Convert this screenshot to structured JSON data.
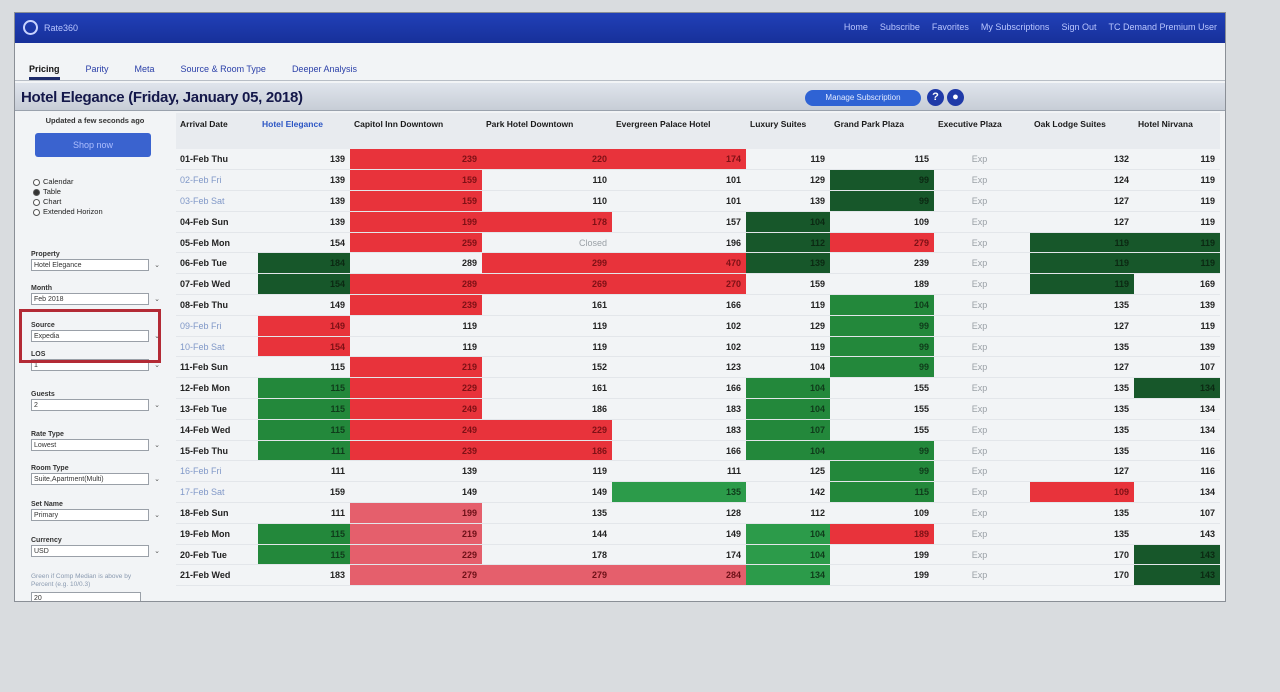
{
  "app": {
    "name": "Rate360",
    "topnav": [
      "Home",
      "Subscribe",
      "Favorites",
      "My Subscriptions",
      "Sign Out",
      "TC Demand Premium User"
    ]
  },
  "tabs": [
    "Pricing",
    "Parity",
    "Meta",
    "Source & Room Type",
    "Deeper Analysis"
  ],
  "header": {
    "title": "Hotel Elegance  (Friday, January 05, 2018)",
    "manage_label": "Manage Subscription"
  },
  "sidebar": {
    "updated": "Updated a few seconds ago",
    "shop_label": "Shop now",
    "views": [
      "Calendar",
      "Table",
      "Chart",
      "Extended Horizon"
    ],
    "fields": [
      {
        "label": "Property",
        "value": "Hotel Elegance"
      },
      {
        "label": "Month",
        "value": "Feb 2018"
      },
      {
        "label": "Source",
        "value": "Expedia"
      },
      {
        "label": "LOS",
        "value": "1"
      },
      {
        "label": "Guests",
        "value": "2"
      },
      {
        "label": "Rate Type",
        "value": "Lowest"
      },
      {
        "label": "Room Type",
        "value": "Suite,Apartment(Multi)"
      },
      {
        "label": "Set Name",
        "value": "Primary"
      },
      {
        "label": "Currency",
        "value": "USD"
      }
    ],
    "fine_print": "Green if Comp Median is above by Percent (e.g. 10/0.3)",
    "threshold": "20"
  },
  "columns": [
    "Arrival Date",
    "Hotel Elegance",
    "Capitol Inn Downtown",
    "Park Hotel Downtown",
    "Evergreen Palace Hotel",
    "Luxury Suites",
    "Grand Park Plaza",
    "Executive Plaza",
    "Oak Lodge Suites",
    "Hotel Nirvana"
  ],
  "rows": [
    {
      "date": "01-Feb Thu",
      "wk": false,
      "cells": [
        [
          "139",
          ""
        ],
        [
          "239",
          "r"
        ],
        [
          "220",
          "r"
        ],
        [
          "174",
          "r"
        ],
        [
          "119",
          ""
        ],
        [
          "115",
          ""
        ],
        [
          "Exp",
          "exp"
        ],
        [
          "132",
          ""
        ],
        [
          "119",
          ""
        ]
      ]
    },
    {
      "date": "02-Feb Fri",
      "wk": true,
      "cells": [
        [
          "139",
          ""
        ],
        [
          "159",
          "r"
        ],
        [
          "110",
          ""
        ],
        [
          "101",
          ""
        ],
        [
          "129",
          ""
        ],
        [
          "99",
          "dg"
        ],
        [
          "Exp",
          "exp"
        ],
        [
          "124",
          ""
        ],
        [
          "119",
          ""
        ]
      ]
    },
    {
      "date": "03-Feb Sat",
      "wk": true,
      "cells": [
        [
          "139",
          ""
        ],
        [
          "159",
          "r"
        ],
        [
          "110",
          ""
        ],
        [
          "101",
          ""
        ],
        [
          "139",
          ""
        ],
        [
          "99",
          "dg"
        ],
        [
          "Exp",
          "exp"
        ],
        [
          "127",
          ""
        ],
        [
          "119",
          ""
        ]
      ]
    },
    {
      "date": "04-Feb Sun",
      "wk": false,
      "cells": [
        [
          "139",
          ""
        ],
        [
          "199",
          "r"
        ],
        [
          "178",
          "r"
        ],
        [
          "157",
          ""
        ],
        [
          "104",
          "dg"
        ],
        [
          "109",
          ""
        ],
        [
          "Exp",
          "exp"
        ],
        [
          "127",
          ""
        ],
        [
          "119",
          ""
        ]
      ]
    },
    {
      "date": "05-Feb Mon",
      "wk": false,
      "cells": [
        [
          "154",
          ""
        ],
        [
          "259",
          "r"
        ],
        [
          "Closed",
          "closed"
        ],
        [
          "196",
          ""
        ],
        [
          "112",
          "dg"
        ],
        [
          "279",
          "r"
        ],
        [
          "Exp",
          "exp"
        ],
        [
          "119",
          "dg"
        ],
        [
          "119",
          "dg"
        ]
      ]
    },
    {
      "date": "06-Feb Tue",
      "wk": false,
      "cells": [
        [
          "184",
          "dg"
        ],
        [
          "289",
          ""
        ],
        [
          "299",
          "r"
        ],
        [
          "470",
          "r"
        ],
        [
          "139",
          "dg"
        ],
        [
          "239",
          ""
        ],
        [
          "Exp",
          "exp"
        ],
        [
          "119",
          "dg"
        ],
        [
          "119",
          "dg"
        ]
      ]
    },
    {
      "date": "07-Feb Wed",
      "wk": false,
      "cells": [
        [
          "154",
          "dg"
        ],
        [
          "289",
          "r"
        ],
        [
          "269",
          "r"
        ],
        [
          "270",
          "r"
        ],
        [
          "159",
          ""
        ],
        [
          "189",
          ""
        ],
        [
          "Exp",
          "exp"
        ],
        [
          "119",
          "dg"
        ],
        [
          "169",
          ""
        ]
      ]
    },
    {
      "date": "08-Feb Thu",
      "wk": false,
      "cells": [
        [
          "149",
          ""
        ],
        [
          "239",
          "r"
        ],
        [
          "161",
          ""
        ],
        [
          "166",
          ""
        ],
        [
          "119",
          ""
        ],
        [
          "104",
          "g"
        ],
        [
          "Exp",
          "exp"
        ],
        [
          "135",
          ""
        ],
        [
          "139",
          ""
        ]
      ]
    },
    {
      "date": "09-Feb Fri",
      "wk": true,
      "cells": [
        [
          "149",
          "r"
        ],
        [
          "119",
          ""
        ],
        [
          "119",
          ""
        ],
        [
          "102",
          ""
        ],
        [
          "129",
          ""
        ],
        [
          "99",
          "g"
        ],
        [
          "Exp",
          "exp"
        ],
        [
          "127",
          ""
        ],
        [
          "119",
          ""
        ]
      ]
    },
    {
      "date": "10-Feb Sat",
      "wk": true,
      "cells": [
        [
          "154",
          "r"
        ],
        [
          "119",
          ""
        ],
        [
          "119",
          ""
        ],
        [
          "102",
          ""
        ],
        [
          "119",
          ""
        ],
        [
          "99",
          "g"
        ],
        [
          "Exp",
          "exp"
        ],
        [
          "135",
          ""
        ],
        [
          "139",
          ""
        ]
      ]
    },
    {
      "date": "11-Feb Sun",
      "wk": false,
      "cells": [
        [
          "115",
          ""
        ],
        [
          "219",
          "r"
        ],
        [
          "152",
          ""
        ],
        [
          "123",
          ""
        ],
        [
          "104",
          ""
        ],
        [
          "99",
          "g"
        ],
        [
          "Exp",
          "exp"
        ],
        [
          "127",
          ""
        ],
        [
          "107",
          ""
        ]
      ]
    },
    {
      "date": "12-Feb Mon",
      "wk": false,
      "cells": [
        [
          "115",
          "g"
        ],
        [
          "229",
          "r"
        ],
        [
          "161",
          ""
        ],
        [
          "166",
          ""
        ],
        [
          "104",
          "g"
        ],
        [
          "155",
          ""
        ],
        [
          "Exp",
          "exp"
        ],
        [
          "135",
          ""
        ],
        [
          "134",
          "dg"
        ]
      ]
    },
    {
      "date": "13-Feb Tue",
      "wk": false,
      "cells": [
        [
          "115",
          "g"
        ],
        [
          "249",
          "r"
        ],
        [
          "186",
          ""
        ],
        [
          "183",
          ""
        ],
        [
          "104",
          "g"
        ],
        [
          "155",
          ""
        ],
        [
          "Exp",
          "exp"
        ],
        [
          "135",
          ""
        ],
        [
          "134",
          ""
        ]
      ]
    },
    {
      "date": "14-Feb Wed",
      "wk": false,
      "cells": [
        [
          "115",
          "g"
        ],
        [
          "249",
          "r"
        ],
        [
          "229",
          "r"
        ],
        [
          "183",
          ""
        ],
        [
          "107",
          "g"
        ],
        [
          "155",
          ""
        ],
        [
          "Exp",
          "exp"
        ],
        [
          "135",
          ""
        ],
        [
          "134",
          ""
        ]
      ]
    },
    {
      "date": "15-Feb Thu",
      "wk": false,
      "cells": [
        [
          "111",
          "g"
        ],
        [
          "239",
          "r"
        ],
        [
          "186",
          "r"
        ],
        [
          "166",
          ""
        ],
        [
          "104",
          "g"
        ],
        [
          "99",
          "g"
        ],
        [
          "Exp",
          "exp"
        ],
        [
          "135",
          ""
        ],
        [
          "116",
          ""
        ]
      ]
    },
    {
      "date": "16-Feb Fri",
      "wk": true,
      "cells": [
        [
          "111",
          ""
        ],
        [
          "139",
          ""
        ],
        [
          "119",
          ""
        ],
        [
          "111",
          ""
        ],
        [
          "125",
          ""
        ],
        [
          "99",
          "g"
        ],
        [
          "Exp",
          "exp"
        ],
        [
          "127",
          ""
        ],
        [
          "116",
          ""
        ]
      ]
    },
    {
      "date": "17-Feb Sat",
      "wk": true,
      "cells": [
        [
          "159",
          ""
        ],
        [
          "149",
          ""
        ],
        [
          "149",
          ""
        ],
        [
          "135",
          "g2"
        ],
        [
          "142",
          ""
        ],
        [
          "115",
          "g"
        ],
        [
          "Exp",
          "exp"
        ],
        [
          "109",
          "r"
        ],
        [
          "134",
          ""
        ]
      ]
    },
    {
      "date": "18-Feb Sun",
      "wk": false,
      "cells": [
        [
          "111",
          ""
        ],
        [
          "199",
          "r2"
        ],
        [
          "135",
          ""
        ],
        [
          "128",
          ""
        ],
        [
          "112",
          ""
        ],
        [
          "109",
          ""
        ],
        [
          "Exp",
          "exp"
        ],
        [
          "135",
          ""
        ],
        [
          "107",
          ""
        ]
      ]
    },
    {
      "date": "19-Feb Mon",
      "wk": false,
      "cells": [
        [
          "115",
          "g"
        ],
        [
          "219",
          "r2"
        ],
        [
          "144",
          ""
        ],
        [
          "149",
          ""
        ],
        [
          "104",
          "g2"
        ],
        [
          "189",
          "r"
        ],
        [
          "Exp",
          "exp"
        ],
        [
          "135",
          ""
        ],
        [
          "143",
          ""
        ]
      ]
    },
    {
      "date": "20-Feb Tue",
      "wk": false,
      "cells": [
        [
          "115",
          "g"
        ],
        [
          "229",
          "r2"
        ],
        [
          "178",
          ""
        ],
        [
          "174",
          ""
        ],
        [
          "104",
          "g2"
        ],
        [
          "199",
          ""
        ],
        [
          "Exp",
          "exp"
        ],
        [
          "170",
          ""
        ],
        [
          "143",
          "dg"
        ]
      ]
    },
    {
      "date": "21-Feb Wed",
      "wk": false,
      "cells": [
        [
          "183",
          ""
        ],
        [
          "279",
          "r2"
        ],
        [
          "279",
          "r2"
        ],
        [
          "284",
          "r2"
        ],
        [
          "134",
          "g2"
        ],
        [
          "199",
          ""
        ],
        [
          "Exp",
          "exp"
        ],
        [
          "170",
          ""
        ],
        [
          "143",
          "dg"
        ]
      ]
    }
  ]
}
